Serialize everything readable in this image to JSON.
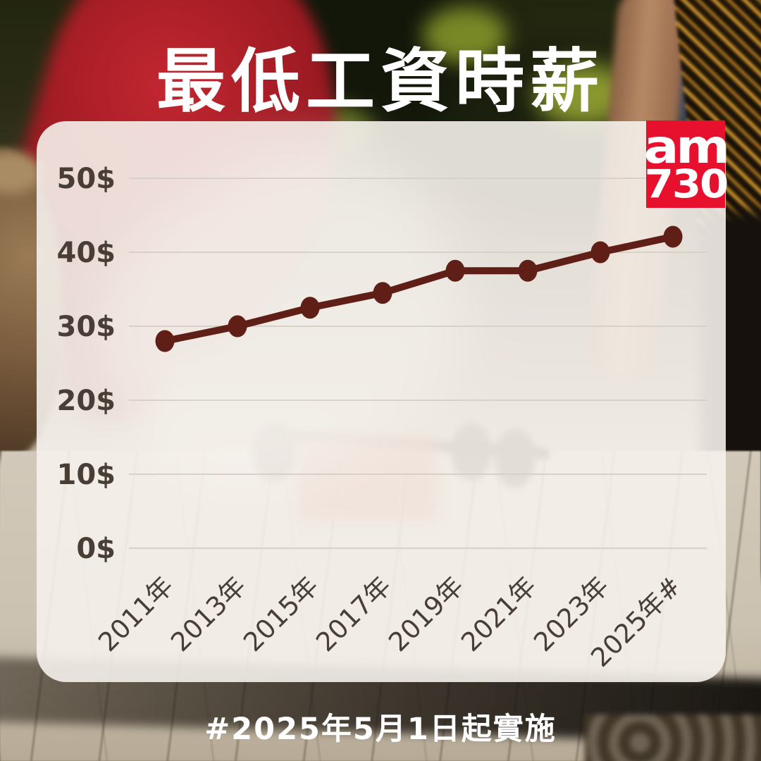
{
  "title": "最低工資時薪",
  "logo": {
    "line1": "am",
    "line2": "730",
    "color": "#E8112D"
  },
  "chart_data": {
    "type": "line",
    "title": "最低工資時薪",
    "categories": [
      "2011年",
      "2013年",
      "2015年",
      "2017年",
      "2019年",
      "2021年",
      "2023年",
      "2025年#"
    ],
    "values": [
      28,
      30,
      32.5,
      34.5,
      37.5,
      37.5,
      40,
      42.1
    ],
    "xlabel": "",
    "ylabel": "",
    "ylim": [
      0,
      50
    ],
    "y_ticks": [
      {
        "label": "0$",
        "value": 0
      },
      {
        "label": "10$",
        "value": 10
      },
      {
        "label": "20$",
        "value": 20
      },
      {
        "label": "30$",
        "value": 30
      },
      {
        "label": "40$",
        "value": 40
      },
      {
        "label": "50$",
        "value": 50
      }
    ],
    "grid": true,
    "legend": false,
    "footnote": "#2025年5月1日起實施"
  },
  "colors": {
    "line": "#5F1F17",
    "point": "#5F1F17",
    "gridline": "#D7D1C7",
    "axis_text": "#483E35",
    "logo_red": "#E8112D",
    "title_text": "#FFFFFF",
    "card_bg": "rgba(245,241,235,0.90)"
  }
}
